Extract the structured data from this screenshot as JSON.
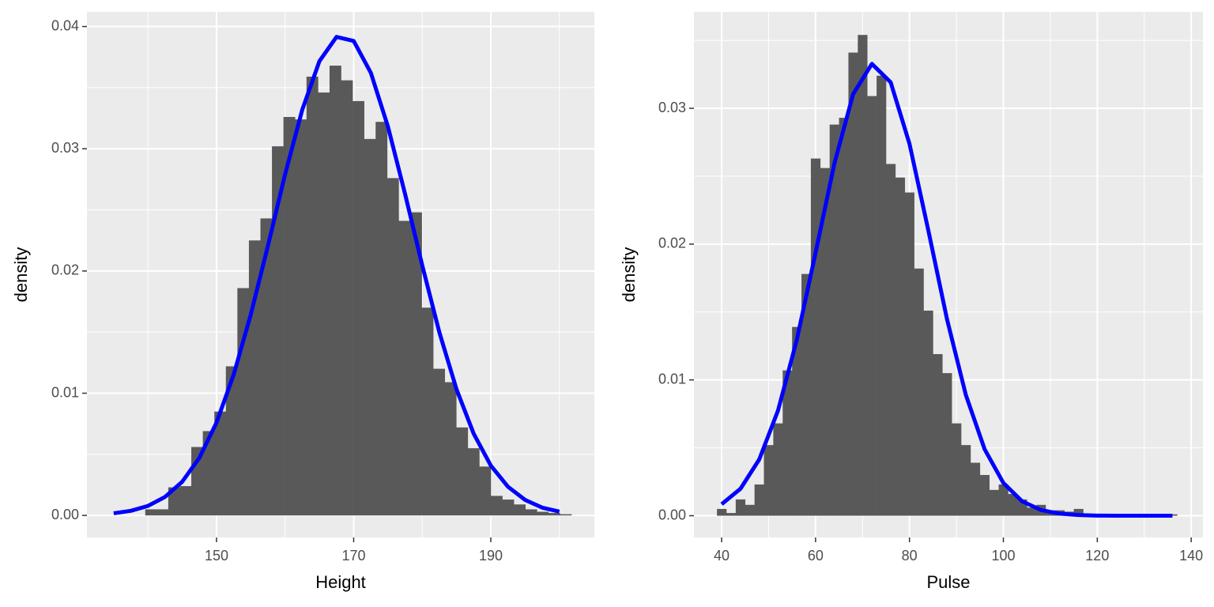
{
  "chart_data": [
    {
      "type": "histogram",
      "x_label": "Height",
      "y_label": "density",
      "bins": [
        139.6,
        141.28,
        142.96,
        144.64,
        146.32,
        148.0,
        149.68,
        151.36,
        153.04,
        154.72,
        156.4,
        158.08,
        159.76,
        161.44,
        163.12,
        164.8,
        166.48,
        168.16,
        169.84,
        171.52,
        173.2,
        174.88,
        176.56,
        178.24,
        179.92,
        181.6,
        183.28,
        184.96,
        186.64,
        188.32,
        190.0,
        191.68,
        193.36,
        195.04,
        196.72,
        198.4,
        200.08,
        201.76
      ],
      "counts": [
        0.0005,
        0.0005,
        0.0023,
        0.0024,
        0.0056,
        0.0069,
        0.0085,
        0.0122,
        0.0186,
        0.0225,
        0.0243,
        0.0302,
        0.0326,
        0.0324,
        0.0359,
        0.0346,
        0.0368,
        0.0356,
        0.0339,
        0.0308,
        0.0322,
        0.0276,
        0.0241,
        0.0248,
        0.017,
        0.012,
        0.0109,
        0.0072,
        0.0055,
        0.004,
        0.0016,
        0.0013,
        0.0009,
        0.0005,
        0.0003,
        0.0002,
        0.0001
      ],
      "color": "#595959",
      "curve": {
        "color": "#0000ff",
        "x": [
          135,
          137.5,
          140,
          142.5,
          145,
          147.5,
          150,
          152.5,
          155,
          157.5,
          160,
          162.5,
          165,
          167.5,
          170,
          172.5,
          175,
          177.5,
          180,
          182.5,
          185,
          187.5,
          190,
          192.5,
          195,
          197.5,
          200
        ],
        "values": [
          0.000175,
          0.00038,
          0.00078,
          0.00152,
          0.00276,
          0.00472,
          0.0076,
          0.01152,
          0.01645,
          0.02207,
          0.02791,
          0.03319,
          0.03716,
          0.03915,
          0.03882,
          0.03622,
          0.03181,
          0.02629,
          0.02046,
          0.01497,
          0.01032,
          0.00669,
          0.00408,
          0.00235,
          0.00127,
          0.00064,
          0.00031
        ]
      },
      "xlim": [
        131.1,
        205.1
      ],
      "ylim": [
        -0.0018,
        0.0412
      ],
      "xticks": [
        150,
        170,
        190
      ],
      "xminor": [
        140,
        160,
        180,
        200
      ],
      "yticks": [
        {
          "value": 0,
          "label": "0.00"
        },
        0.01,
        0.02,
        0.03,
        0.04
      ],
      "yminor": [
        0.005,
        0.015,
        0.025,
        0.035
      ],
      "grid": true
    },
    {
      "type": "histogram",
      "x_label": "Pulse",
      "y_label": "density",
      "bins": [
        39,
        41,
        43,
        45,
        47,
        49,
        51,
        53,
        55,
        57,
        59,
        61,
        63,
        65,
        67,
        69,
        71,
        73,
        75,
        77,
        79,
        81,
        83,
        85,
        87,
        89,
        91,
        93,
        95,
        97,
        99,
        101,
        103,
        105,
        107,
        109,
        111,
        113,
        115,
        117,
        119,
        121,
        123,
        125,
        127,
        129,
        131,
        133,
        135,
        137
      ],
      "counts": [
        0.0005,
        0.0002,
        0.0012,
        0.0008,
        0.0023,
        0.0052,
        0.0068,
        0.0107,
        0.0139,
        0.0178,
        0.0263,
        0.0256,
        0.0288,
        0.0293,
        0.0341,
        0.0354,
        0.0309,
        0.0324,
        0.0259,
        0.0249,
        0.0238,
        0.0182,
        0.0151,
        0.0119,
        0.0105,
        0.0068,
        0.0052,
        0.0039,
        0.003,
        0.0019,
        0.0023,
        0.0016,
        0.0012,
        0.0006,
        0.0008,
        0.0004,
        0.0004,
        0.0003,
        0.0005,
        0.0001,
        0.0001,
        0.0001,
        0,
        0.0001,
        0,
        0,
        0,
        0,
        0.0001
      ],
      "color": "#595959",
      "curve": {
        "color": "#0000ff",
        "x": [
          40,
          44,
          48,
          52,
          56,
          60,
          64,
          68,
          72,
          76,
          80,
          84,
          88,
          92,
          96,
          100,
          104,
          108,
          112,
          116,
          120,
          124,
          128,
          132,
          136
        ],
        "values": [
          0.00085,
          0.00198,
          0.00414,
          0.00774,
          0.01294,
          0.01935,
          0.02591,
          0.03104,
          0.03327,
          0.03191,
          0.02739,
          0.02104,
          0.01446,
          0.0089,
          0.0049,
          0.00241,
          0.00106,
          0.00042,
          0.00015,
          5e-05,
          1e-05,
          0,
          0,
          0,
          0
        ]
      },
      "xlim": [
        34.1,
        142.5
      ],
      "ylim": [
        -0.0016,
        0.0371
      ],
      "xticks": [
        40,
        60,
        80,
        100,
        120,
        140
      ],
      "xminor": [
        50,
        70,
        90,
        110,
        130
      ],
      "yticks": [
        {
          "value": 0,
          "label": "0.00"
        },
        0.01,
        0.02,
        0.03
      ],
      "yminor": [
        0.005,
        0.015,
        0.025,
        0.035
      ],
      "grid": true
    }
  ]
}
